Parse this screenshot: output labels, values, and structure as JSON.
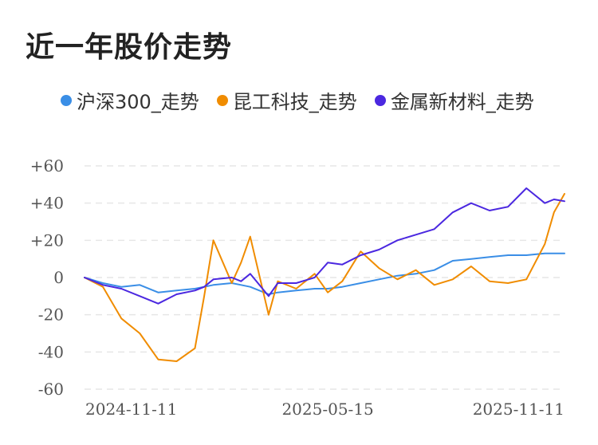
{
  "title": "近一年股价走势",
  "legend": [
    {
      "label": "沪深300_走势",
      "color": "#3a8ee6"
    },
    {
      "label": "昆工科技_走势",
      "color": "#f08c00"
    },
    {
      "label": "金属新材料_走势",
      "color": "#4b28e0"
    }
  ],
  "chart_data": {
    "type": "line",
    "title": "近一年股价走势",
    "xlabel": "",
    "ylabel": "",
    "x_ticks": [
      "2024-11-11",
      "2025-05-15",
      "2025-11-11"
    ],
    "y_ticks": [
      "+60",
      "+40",
      "+20",
      "0",
      "-20",
      "-40",
      "-60"
    ],
    "ylim": [
      -60,
      60
    ],
    "grid": "horizontal dashed",
    "legend_position": "top",
    "x": [
      "2024-11-11",
      "2024-11-25",
      "2024-12-09",
      "2024-12-23",
      "2025-01-06",
      "2025-01-20",
      "2025-02-03",
      "2025-02-10",
      "2025-02-17",
      "2025-03-03",
      "2025-03-10",
      "2025-03-17",
      "2025-03-31",
      "2025-04-07",
      "2025-04-21",
      "2025-05-05",
      "2025-05-15",
      "2025-05-26",
      "2025-06-09",
      "2025-06-23",
      "2025-07-07",
      "2025-07-21",
      "2025-08-04",
      "2025-08-18",
      "2025-09-01",
      "2025-09-15",
      "2025-09-29",
      "2025-10-13",
      "2025-10-27",
      "2025-11-03",
      "2025-11-11"
    ],
    "series": [
      {
        "name": "沪深300_走势",
        "color": "#3a8ee6",
        "values": [
          0,
          -3,
          -5,
          -4,
          -8,
          -7,
          -6,
          -5,
          -4,
          -3,
          -4,
          -5,
          -9,
          -8,
          -7,
          -6,
          -6,
          -5,
          -3,
          -1,
          1,
          2,
          4,
          9,
          10,
          11,
          12,
          12,
          13,
          13,
          13
        ]
      },
      {
        "name": "昆工科技_走势",
        "color": "#f08c00",
        "values": [
          0,
          -5,
          -22,
          -30,
          -44,
          -45,
          -38,
          -10,
          20,
          -3,
          8,
          22,
          -20,
          -2,
          -6,
          2,
          -8,
          -2,
          14,
          5,
          -1,
          4,
          -4,
          -1,
          6,
          -2,
          -3,
          -1,
          18,
          35,
          45
        ]
      },
      {
        "name": "金属新材料_走势",
        "color": "#4b28e0",
        "values": [
          0,
          -4,
          -6,
          -10,
          -14,
          -9,
          -7,
          -5,
          -1,
          0,
          -2,
          2,
          -10,
          -3,
          -3,
          0,
          8,
          7,
          12,
          15,
          20,
          23,
          26,
          35,
          40,
          36,
          38,
          48,
          40,
          42,
          41
        ]
      }
    ]
  }
}
